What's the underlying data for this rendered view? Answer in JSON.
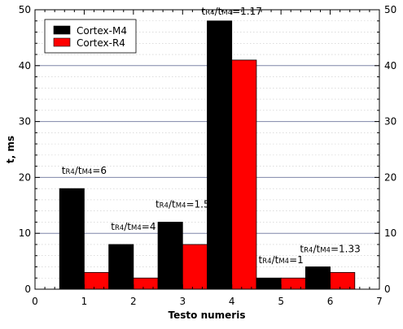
{
  "chart_data": {
    "type": "bar",
    "xlabel": "Testo numeris",
    "ylabel": "t, ms",
    "xlim": [
      0,
      7
    ],
    "ylim": [
      0,
      50
    ],
    "x_ticks": [
      "0",
      "1",
      "2",
      "3",
      "4",
      "5",
      "6",
      "7"
    ],
    "y_ticks": [
      "0",
      "10",
      "20",
      "30",
      "40",
      "50"
    ],
    "grid": {
      "major_y": true,
      "minor_y_dotted": true
    },
    "legend_position": "top-left",
    "categories": [
      1,
      2,
      3,
      4,
      5,
      6
    ],
    "series": [
      {
        "name": "Cortex-M4",
        "color": "#000000",
        "values": [
          18,
          8,
          12,
          48,
          2,
          4
        ]
      },
      {
        "name": "Cortex-R4",
        "color": "#ff0000",
        "values": [
          3,
          2,
          8,
          41,
          2,
          3
        ]
      }
    ],
    "annotations": [
      {
        "category": 1,
        "prefix": "t",
        "sub1": "R4",
        "mid": "/t",
        "sub2": "M4",
        "suffix": "=6"
      },
      {
        "category": 2,
        "prefix": "t",
        "sub1": "R4",
        "mid": "/t",
        "sub2": "M4",
        "suffix": "=4"
      },
      {
        "category": 3,
        "prefix": "t",
        "sub1": "R4",
        "mid": "/t",
        "sub2": "M4",
        "suffix": "=1.5"
      },
      {
        "category": 4,
        "prefix": "t",
        "sub1": "R4",
        "mid": "/t",
        "sub2": "M4",
        "suffix": "=1.17"
      },
      {
        "category": 5,
        "prefix": "t",
        "sub1": "R4",
        "mid": "/t",
        "sub2": "M4",
        "suffix": "=1"
      },
      {
        "category": 6,
        "prefix": "t",
        "sub1": "R4",
        "mid": "/t",
        "sub2": "M4",
        "suffix": "=1.33"
      }
    ]
  }
}
